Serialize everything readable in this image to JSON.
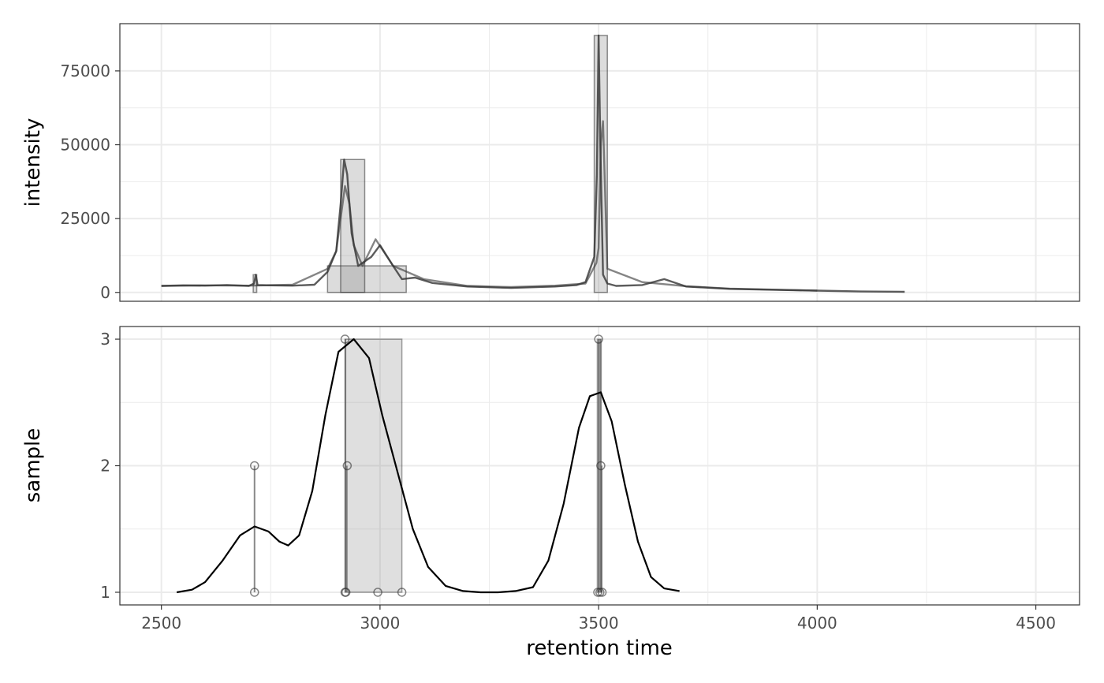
{
  "chart_data": [
    {
      "type": "line",
      "panel": "top",
      "ylabel": "intensity",
      "xlim": [
        2405,
        4600
      ],
      "ylim": [
        -3000,
        91000
      ],
      "y_ticks": [
        0,
        25000,
        50000,
        75000
      ],
      "y_tick_labels": [
        "0",
        "25000",
        "50000",
        "75000"
      ],
      "grid": true,
      "colors": {
        "line": "#333333",
        "area": "#808080",
        "panel_border": "#333333",
        "grid": "#ebebeb"
      },
      "series": [
        {
          "x": [
            2500,
            2550,
            2600,
            2650,
            2700,
            2712,
            2716,
            2720,
            2750,
            2800,
            2850,
            2880,
            2900,
            2910,
            2918,
            2925,
            2935,
            2950,
            2980,
            3000,
            3030,
            3050,
            3080,
            3120,
            3200,
            3300,
            3400,
            3450,
            3470,
            3490,
            3496,
            3500,
            3504,
            3510,
            3520,
            3540,
            3600,
            3650,
            3700,
            3800,
            3900,
            4000,
            4100,
            4200
          ],
          "y": [
            2200,
            2400,
            2300,
            2500,
            2200,
            3000,
            6000,
            2500,
            2400,
            2300,
            2600,
            7000,
            14000,
            30000,
            45000,
            40000,
            20000,
            9000,
            12000,
            16000,
            9000,
            4500,
            5000,
            3200,
            2000,
            1500,
            2000,
            2500,
            3500,
            12000,
            40000,
            87000,
            50000,
            6000,
            3000,
            2200,
            2500,
            4500,
            2000,
            1200,
            900,
            600,
            300,
            200
          ]
        },
        {
          "x": [
            2500,
            2600,
            2700,
            2800,
            2880,
            2900,
            2920,
            2930,
            2940,
            2960,
            2990,
            3030,
            3100,
            3200,
            3300,
            3400,
            3470,
            3495,
            3500,
            3505,
            3510,
            3520,
            3600,
            3700,
            3800,
            4000
          ],
          "y": [
            2200,
            2400,
            2300,
            2600,
            8000,
            14000,
            36000,
            30000,
            16000,
            9000,
            18000,
            9000,
            4500,
            2200,
            1800,
            2300,
            3000,
            10000,
            15000,
            50000,
            58000,
            8000,
            3500,
            2100,
            1300,
            600
          ]
        }
      ],
      "areas": [
        {
          "x": [
            2880,
            3060
          ],
          "y": [
            0,
            9000
          ]
        },
        {
          "x": [
            2910,
            2965
          ],
          "y": [
            0,
            45000
          ]
        },
        {
          "x": [
            3490,
            3520
          ],
          "y": [
            0,
            87000
          ]
        },
        {
          "x": [
            2710,
            2718
          ],
          "y": [
            0,
            6000
          ]
        }
      ]
    },
    {
      "type": "scatter",
      "panel": "bottom",
      "ylabel": "sample",
      "xlabel": "retention time",
      "xlim": [
        2405,
        4600
      ],
      "ylim": [
        0.9,
        3.1
      ],
      "x_ticks": [
        2500,
        3000,
        3500,
        4000,
        4500
      ],
      "x_tick_labels": [
        "2500",
        "3000",
        "3500",
        "4000",
        "4500"
      ],
      "y_ticks": [
        1,
        2,
        3
      ],
      "y_tick_labels": [
        "1",
        "2",
        "3"
      ],
      "grid": true,
      "points": [
        {
          "x": 2713,
          "y": 1
        },
        {
          "x": 2713,
          "y": 2
        },
        {
          "x": 2920,
          "y": 1
        },
        {
          "x": 2922,
          "y": 1
        },
        {
          "x": 2920,
          "y": 3
        },
        {
          "x": 2925,
          "y": 2
        },
        {
          "x": 2995,
          "y": 1
        },
        {
          "x": 3050,
          "y": 1
        },
        {
          "x": 3498,
          "y": 1
        },
        {
          "x": 3503,
          "y": 1
        },
        {
          "x": 3500,
          "y": 3
        },
        {
          "x": 3505,
          "y": 2
        },
        {
          "x": 3508,
          "y": 1
        }
      ],
      "segments": [
        {
          "x": 2713,
          "y": [
            1,
            2
          ]
        },
        {
          "x": 2921,
          "y": [
            1,
            3
          ]
        },
        {
          "x": 2924,
          "y": [
            1,
            2
          ]
        },
        {
          "x": 3500,
          "y": [
            1,
            3
          ]
        },
        {
          "x": 3504,
          "y": [
            1,
            3
          ]
        },
        {
          "x": 3507,
          "y": [
            1,
            2
          ]
        }
      ],
      "rects": [
        {
          "x": [
            2920,
            3050
          ],
          "y": [
            1,
            3
          ]
        },
        {
          "x": [
            3497,
            3506
          ],
          "y": [
            1,
            3
          ]
        }
      ],
      "density": {
        "x": [
          2535,
          2570,
          2600,
          2640,
          2680,
          2713,
          2745,
          2770,
          2790,
          2815,
          2845,
          2875,
          2905,
          2940,
          2975,
          3005,
          3040,
          3075,
          3110,
          3150,
          3190,
          3230,
          3270,
          3310,
          3350,
          3385,
          3420,
          3455,
          3480,
          3505,
          3530,
          3560,
          3590,
          3620,
          3650,
          3685
        ],
        "y": [
          1.0,
          1.02,
          1.08,
          1.25,
          1.45,
          1.52,
          1.48,
          1.4,
          1.37,
          1.45,
          1.8,
          2.4,
          2.9,
          3.0,
          2.85,
          2.4,
          1.95,
          1.5,
          1.2,
          1.05,
          1.01,
          1.0,
          1.0,
          1.01,
          1.04,
          1.25,
          1.7,
          2.3,
          2.55,
          2.58,
          2.35,
          1.85,
          1.4,
          1.12,
          1.03,
          1.01
        ]
      }
    }
  ]
}
